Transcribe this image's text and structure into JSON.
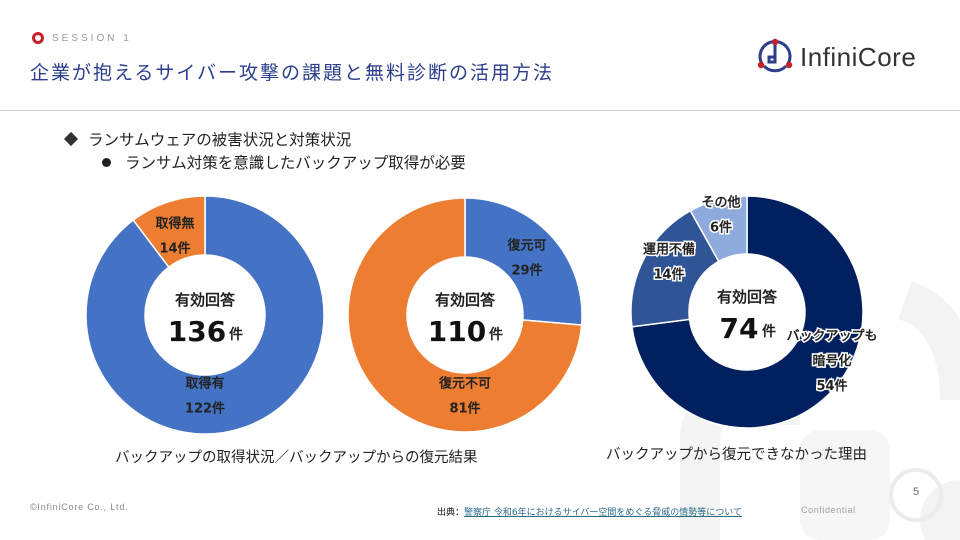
{
  "header": {
    "session": "SESSION 1",
    "title": "企業が抱えるサイバー攻撃の課題と無料診断の活用方法",
    "logo_text": "InfiniCore",
    "accent_color": "#c8202b",
    "title_color": "#2c3e8c"
  },
  "bullets": {
    "level1": "ランサムウェアの被害状況と対策状況",
    "level2": "ランサム対策を意識したバックアップ取得が必要"
  },
  "chart_data": [
    {
      "type": "pie",
      "variant": "donut",
      "title": "バックアップの取得状況",
      "center_label": "有効回答",
      "center_value": "136",
      "center_unit": "件",
      "total": 136,
      "slices": [
        {
          "name": "取得有",
          "value": 122,
          "label": "122件",
          "color": "#4472c4"
        },
        {
          "name": "取得無",
          "value": 14,
          "label": "14件",
          "color": "#ed7d31"
        }
      ]
    },
    {
      "type": "pie",
      "variant": "donut",
      "title": "バックアップからの復元結果",
      "center_label": "有効回答",
      "center_value": "110",
      "center_unit": "件",
      "total": 110,
      "slices": [
        {
          "name": "復元可",
          "value": 29,
          "label": "29件",
          "color": "#4472c4"
        },
        {
          "name": "復元不可",
          "value": 81,
          "label": "81件",
          "color": "#ed7d31"
        }
      ]
    },
    {
      "type": "pie",
      "variant": "donut",
      "title": "バックアップから復元できなかった理由",
      "center_label": "有効回答",
      "center_value": "74",
      "center_unit": "件",
      "total": 74,
      "slices": [
        {
          "name": "バックアップも暗号化",
          "name_lines": [
            "バックアップも",
            "暗号化"
          ],
          "value": 54,
          "label": "54件",
          "color": "#002060"
        },
        {
          "name": "運用不備",
          "value": 14,
          "label": "14件",
          "color": "#2f5597"
        },
        {
          "name": "その他",
          "value": 6,
          "label": "6件",
          "color": "#8faadc"
        }
      ]
    }
  ],
  "captions": {
    "left": "バックアップの取得状況／バックアップからの復元結果",
    "right": "バックアップから復元できなかった理由"
  },
  "footer": {
    "copyright": "©InfiniCore Co., Ltd.",
    "source_prefix": "出典：",
    "source_link": "警察庁 令和6年におけるサイバー空間をめぐる脅威の情勢等について",
    "confidential": "Confidential",
    "page_number": "5"
  }
}
